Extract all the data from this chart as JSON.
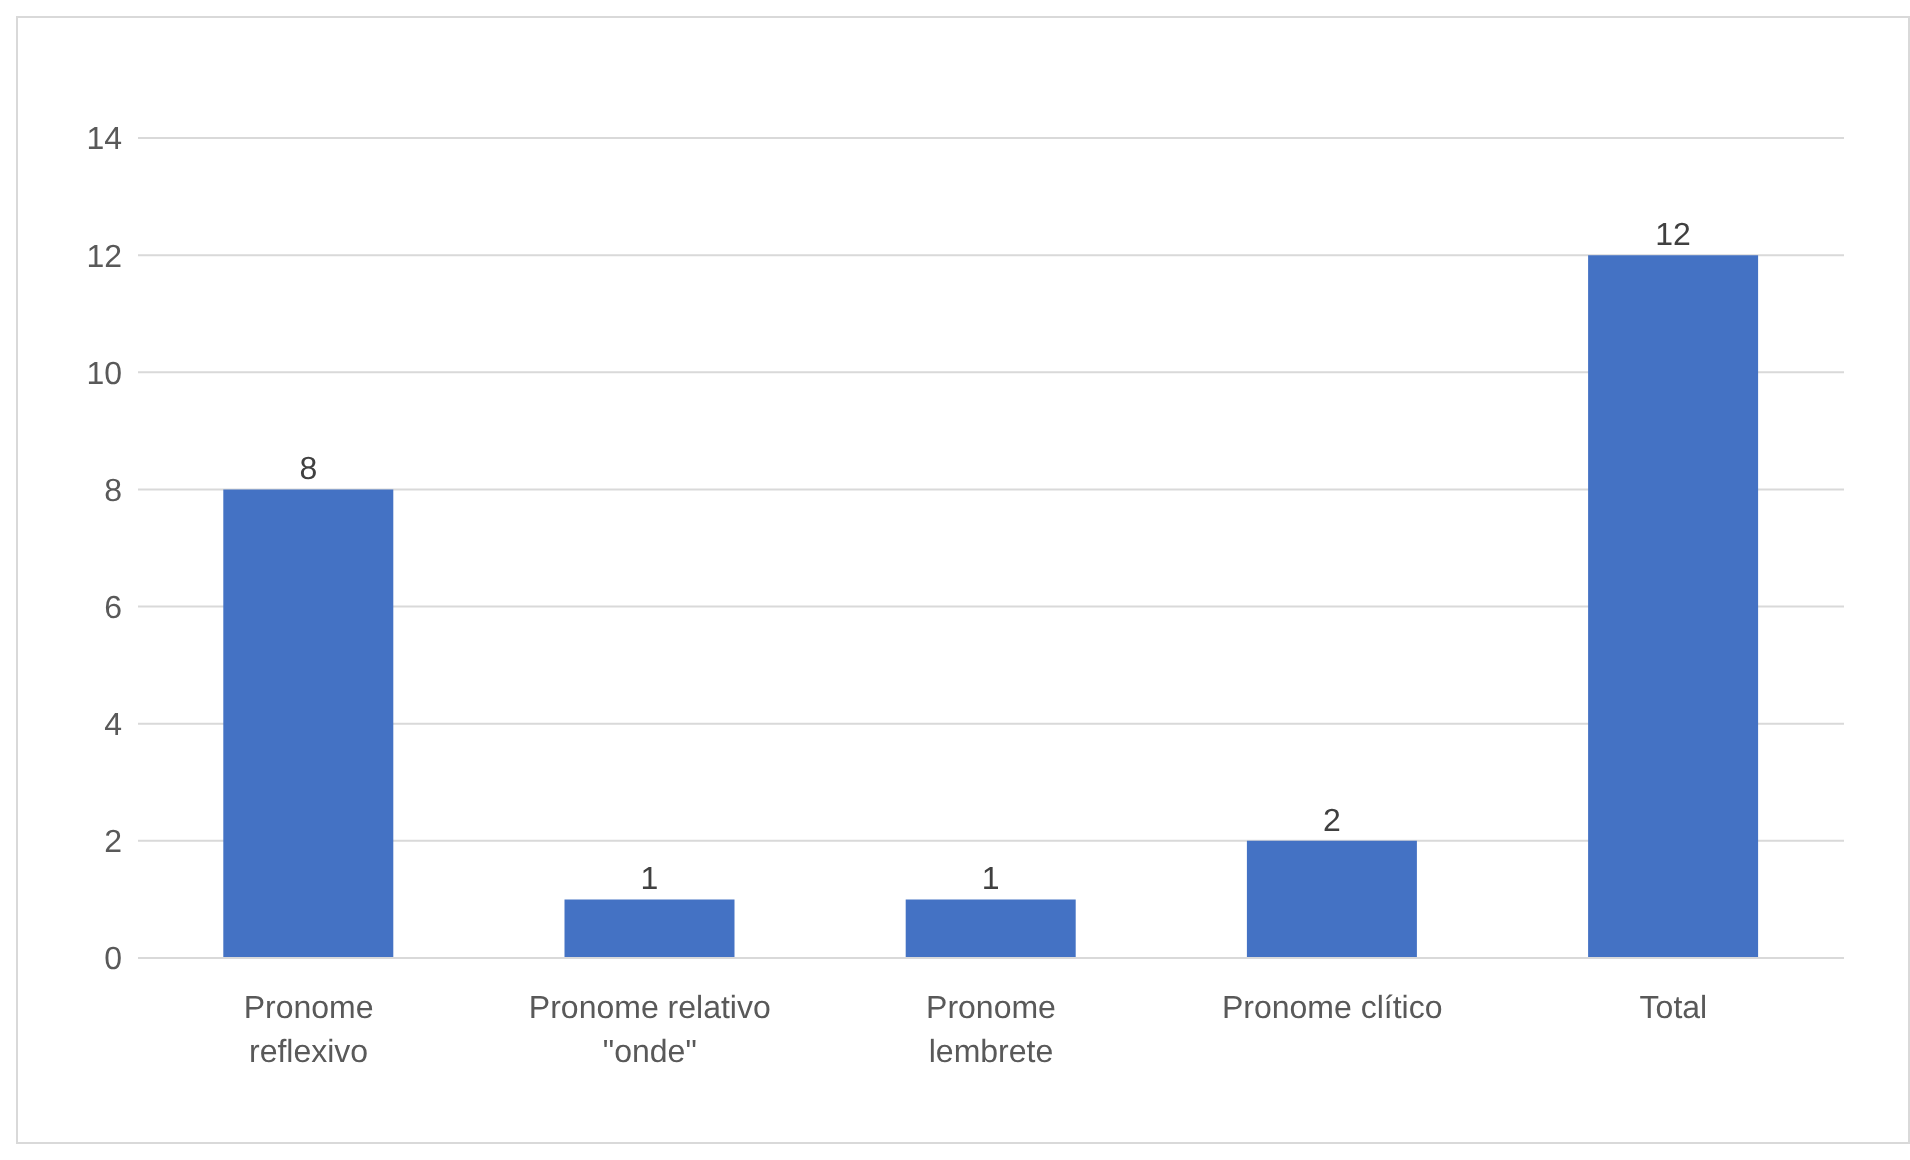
{
  "chart_data": {
    "type": "bar",
    "categories": [
      "Pronome reflexivo",
      "Pronome relativo \"onde\"",
      "Pronome lembrete",
      "Pronome clítico",
      "Total"
    ],
    "values": [
      8,
      1,
      1,
      2,
      12
    ],
    "color": "#4472c4",
    "ylim": [
      0,
      14
    ],
    "yticks": [
      0,
      2,
      4,
      6,
      8,
      10,
      12,
      14
    ],
    "grid": "y",
    "data_labels": true,
    "legend": false
  }
}
